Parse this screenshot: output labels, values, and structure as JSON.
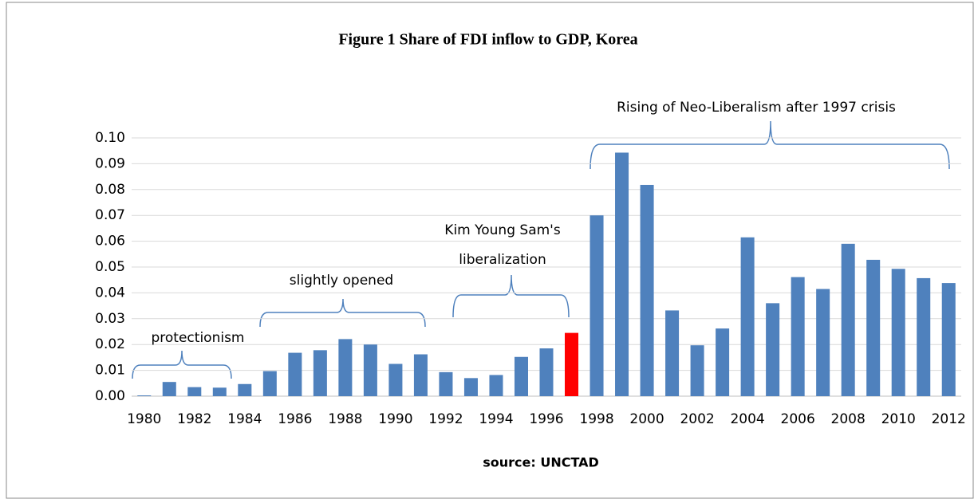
{
  "chart_data": {
    "type": "bar",
    "title": "Figure 1 Share of FDI inflow to GDP, Korea",
    "x_label": "source: UNCTAD",
    "categories": [
      "1980",
      null,
      "1982",
      null,
      "1984",
      null,
      "1986",
      null,
      "1988",
      null,
      "1990",
      null,
      "1992",
      null,
      "1994",
      null,
      "1996",
      null,
      "1998",
      null,
      "2000",
      null,
      "2002",
      null,
      "2004",
      null,
      "2006",
      null,
      "2008",
      null,
      "2010",
      null,
      "2012"
    ],
    "values": [
      0.0003,
      0.0055,
      0.0035,
      0.0033,
      0.0047,
      0.0097,
      0.0168,
      0.0178,
      0.0221,
      0.02,
      0.0125,
      0.0162,
      0.0093,
      0.007,
      0.0082,
      0.0152,
      0.0185,
      0.0245,
      0.07,
      0.0943,
      0.0818,
      0.0332,
      0.0197,
      0.0262,
      0.0615,
      0.036,
      0.0461,
      0.0415,
      0.059,
      0.0528,
      0.0493,
      0.0457,
      0.0438
    ],
    "colors": [
      "#4f81bd",
      "#4f81bd",
      "#4f81bd",
      "#4f81bd",
      "#4f81bd",
      "#4f81bd",
      "#4f81bd",
      "#4f81bd",
      "#4f81bd",
      "#4f81bd",
      "#4f81bd",
      "#4f81bd",
      "#4f81bd",
      "#4f81bd",
      "#4f81bd",
      "#4f81bd",
      "#4f81bd",
      "#ff0000",
      "#4f81bd",
      "#4f81bd",
      "#4f81bd",
      "#4f81bd",
      "#4f81bd",
      "#4f81bd",
      "#4f81bd",
      "#4f81bd",
      "#4f81bd",
      "#4f81bd",
      "#4f81bd",
      "#4f81bd",
      "#4f81bd",
      "#4f81bd",
      "#4f81bd"
    ],
    "ylim": [
      0,
      0.1
    ],
    "yticks": [
      {
        "value": 0,
        "label": "0.00"
      },
      {
        "value": 0.01,
        "label": "0.01"
      },
      {
        "value": 0.02,
        "label": "0.02"
      },
      {
        "value": 0.03,
        "label": "0.03"
      },
      {
        "value": 0.04,
        "label": "0.04"
      },
      {
        "value": 0.05,
        "label": "0.05"
      },
      {
        "value": 0.06,
        "label": "0.06"
      },
      {
        "value": 0.07,
        "label": "0.07"
      },
      {
        "value": 0.08,
        "label": "0.08"
      },
      {
        "value": 0.09,
        "label": "0.09"
      },
      {
        "value": 0.1,
        "label": "0.10"
      }
    ],
    "grid": true,
    "annotations": [
      "protectionism",
      "slightly opened",
      "Kim Young Sam's",
      "liberalization",
      "Rising of Neo-Liberalism after 1997 crisis"
    ]
  }
}
